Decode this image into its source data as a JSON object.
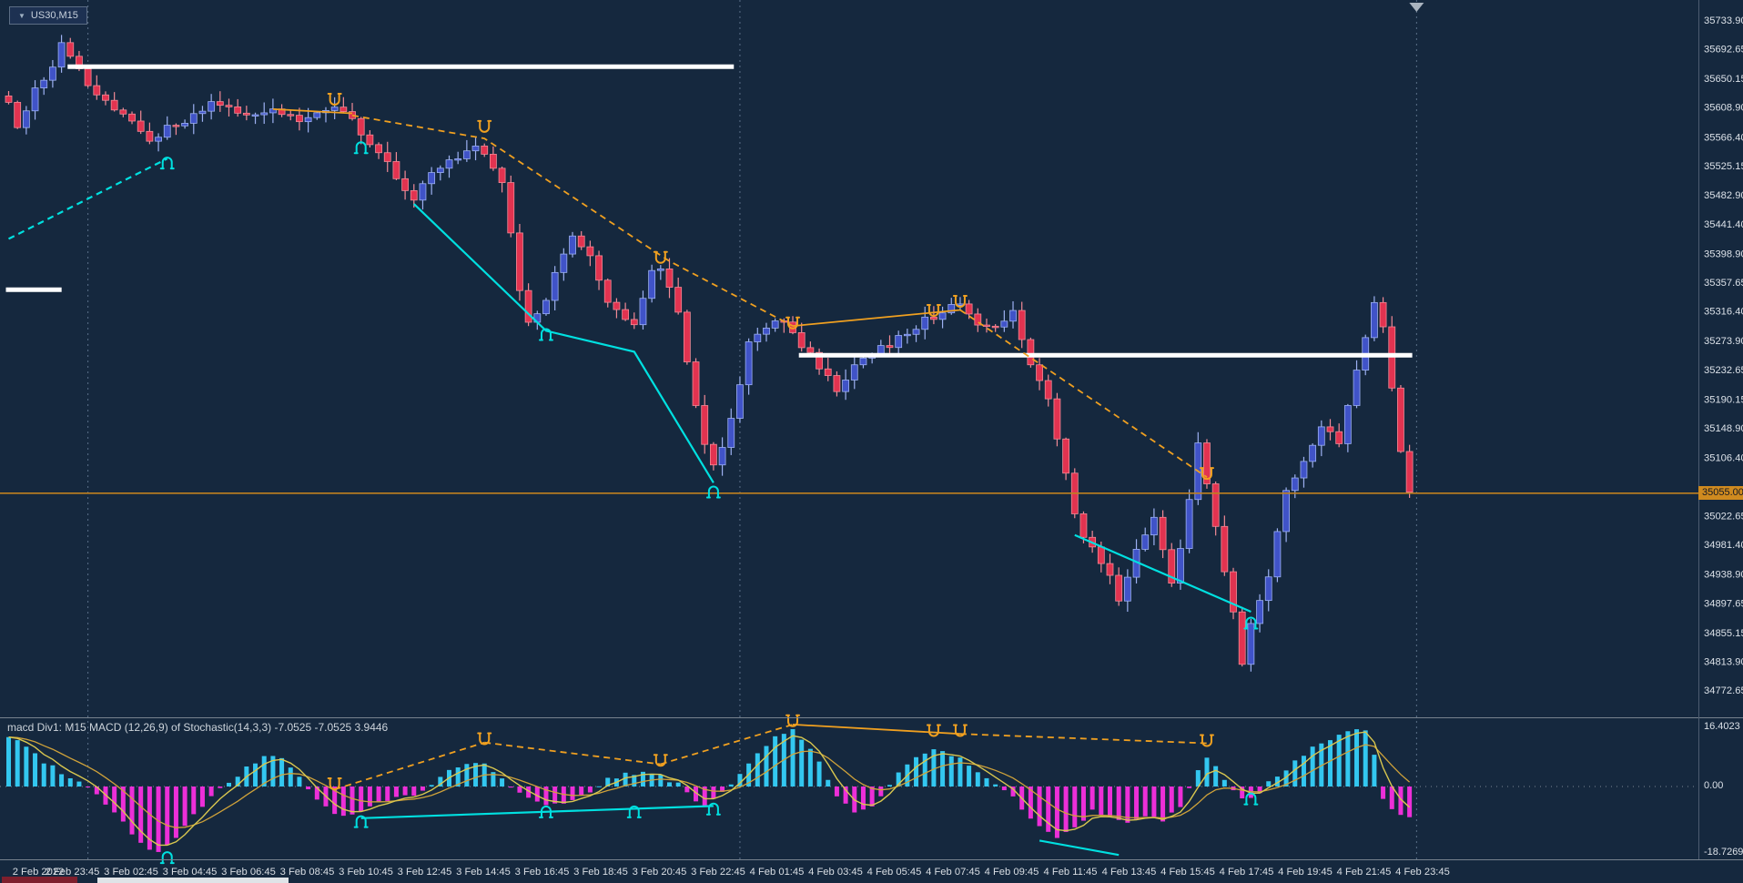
{
  "window": {
    "symbol_box": {
      "label": "US30,M15",
      "dropdown_icon": "▼"
    }
  },
  "chart_data": {
    "type": "candlestick",
    "title": "US30,M15",
    "timeframe": "M15",
    "colors": {
      "background": "#15283e",
      "bull_body": "#4053c8",
      "bull_wick": "#9db1f2",
      "bear_body": "#e23350",
      "bear_wick": "#f28a96",
      "macd_positive": "#33c7f0",
      "macd_negative": "#ec2fd8",
      "macd_signal_line": "#d9c74f",
      "macd_slow_line": "#cfa23a",
      "objects_orange": "#f0a020",
      "objects_cyan": "#00e0e0",
      "level_white": "#ffffff",
      "price_line": "#c08020",
      "price_badge_bg": "#cf8a1f"
    },
    "price_axis": {
      "ticks": [
        "35733.90",
        "35692.65",
        "35650.15",
        "35608.90",
        "35566.40",
        "35525.15",
        "35482.90",
        "35441.40",
        "35398.90",
        "35357.65",
        "35316.40",
        "35273.90",
        "35232.65",
        "35190.15",
        "35148.90",
        "35106.40",
        "35022.65",
        "34981.40",
        "34938.90",
        "34897.65",
        "34855.15",
        "34813.90",
        "34772.65"
      ],
      "current_price": "35055.00"
    },
    "time_axis": {
      "labels": [
        "2 Feb 2022",
        "2 Feb 23:45",
        "3 Feb 02:45",
        "3 Feb 04:45",
        "3 Feb 06:45",
        "3 Feb 08:45",
        "3 Feb 10:45",
        "3 Feb 12:45",
        "3 Feb 14:45",
        "3 Feb 16:45",
        "3 Feb 18:45",
        "3 Feb 20:45",
        "3 Feb 22:45",
        "4 Feb 01:45",
        "4 Feb 03:45",
        "4 Feb 05:45",
        "4 Feb 07:45",
        "4 Feb 09:45",
        "4 Feb 11:45",
        "4 Feb 13:45",
        "4 Feb 15:45",
        "4 Feb 17:45",
        "4 Feb 19:45",
        "4 Feb 21:45",
        "4 Feb 23:45"
      ]
    },
    "candles": {
      "count": 160,
      "wiggle": 6,
      "close_anchors": [
        [
          0,
          35615
        ],
        [
          1,
          35585
        ],
        [
          3,
          35632
        ],
        [
          5,
          35668
        ],
        [
          6,
          35706
        ],
        [
          7,
          35680
        ],
        [
          9,
          35642
        ],
        [
          11,
          35616
        ],
        [
          14,
          35590
        ],
        [
          16,
          35564
        ],
        [
          20,
          35590
        ],
        [
          23,
          35612
        ],
        [
          27,
          35600
        ],
        [
          30,
          35608
        ],
        [
          33,
          35592
        ],
        [
          35,
          35600
        ],
        [
          37,
          35608
        ],
        [
          39,
          35588
        ],
        [
          42,
          35545
        ],
        [
          44,
          35505
        ],
        [
          46,
          35480
        ],
        [
          48,
          35512
        ],
        [
          50,
          35530
        ],
        [
          53,
          35550
        ],
        [
          54,
          35540
        ],
        [
          56,
          35498
        ],
        [
          58,
          35350
        ],
        [
          59,
          35295
        ],
        [
          61,
          35330
        ],
        [
          63,
          35402
        ],
        [
          64,
          35425
        ],
        [
          66,
          35390
        ],
        [
          68,
          35325
        ],
        [
          70,
          35310
        ],
        [
          71,
          35300
        ],
        [
          73,
          35378
        ],
        [
          74,
          35382
        ],
        [
          76,
          35310
        ],
        [
          77,
          35245
        ],
        [
          79,
          35120
        ],
        [
          80,
          35090
        ],
        [
          82,
          35162
        ],
        [
          84,
          35270
        ],
        [
          86,
          35295
        ],
        [
          88,
          35300
        ],
        [
          90,
          35268
        ],
        [
          92,
          35235
        ],
        [
          94,
          35205
        ],
        [
          96,
          35240
        ],
        [
          98,
          35258
        ],
        [
          100,
          35270
        ],
        [
          102,
          35284
        ],
        [
          104,
          35304
        ],
        [
          106,
          35314
        ],
        [
          108,
          35326
        ],
        [
          110,
          35300
        ],
        [
          112,
          35294
        ],
        [
          114,
          35314
        ],
        [
          116,
          35245
        ],
        [
          118,
          35190
        ],
        [
          120,
          35080
        ],
        [
          121,
          35020
        ],
        [
          123,
          34975
        ],
        [
          125,
          34935
        ],
        [
          126,
          34905
        ],
        [
          128,
          34975
        ],
        [
          130,
          35015
        ],
        [
          132,
          34930
        ],
        [
          133,
          34975
        ],
        [
          135,
          35125
        ],
        [
          136,
          35070
        ],
        [
          138,
          34945
        ],
        [
          140,
          34815
        ],
        [
          141,
          34870
        ],
        [
          143,
          34940
        ],
        [
          145,
          35055
        ],
        [
          147,
          35095
        ],
        [
          149,
          35155
        ],
        [
          151,
          35125
        ],
        [
          153,
          35230
        ],
        [
          155,
          35332
        ],
        [
          156,
          35290
        ],
        [
          157,
          35210
        ],
        [
          158,
          35120
        ],
        [
          159,
          35058
        ]
      ]
    },
    "levels": [
      {
        "type": "hline",
        "price": 35055.0
      },
      {
        "type": "segment",
        "price": 35667,
        "from": 7,
        "to": 82
      },
      {
        "type": "segment",
        "price": 35347,
        "from": 0,
        "to": 5.7
      },
      {
        "type": "segment",
        "price": 35253,
        "from": 90,
        "to": 159
      }
    ],
    "trendlines": [
      {
        "color": "cyan",
        "style": "dashed",
        "points": [
          [
            0,
            35420
          ],
          [
            18,
            35535
          ]
        ]
      },
      {
        "color": "cyan",
        "style": "solid",
        "points": [
          [
            46,
            35470
          ],
          [
            61,
            35288
          ],
          [
            71,
            35258
          ],
          [
            80,
            35070
          ]
        ]
      },
      {
        "color": "cyan",
        "style": "solid",
        "points": [
          [
            121,
            34995
          ],
          [
            141,
            34885
          ]
        ]
      },
      {
        "color": "orange",
        "style": "solid",
        "points": [
          [
            30,
            35606
          ],
          [
            39,
            35600
          ]
        ]
      },
      {
        "color": "orange",
        "style": "dashed",
        "points": [
          [
            39,
            35597
          ],
          [
            54,
            35564
          ],
          [
            75,
            35388
          ],
          [
            89,
            35295
          ]
        ]
      },
      {
        "color": "orange",
        "style": "solid",
        "points": [
          [
            89,
            35295
          ],
          [
            108,
            35318
          ]
        ]
      },
      {
        "color": "orange",
        "style": "dashed",
        "points": [
          [
            108,
            35318
          ],
          [
            136,
            35078
          ]
        ]
      }
    ],
    "markers": [
      {
        "shape": "U",
        "color": "orange",
        "pane": "price",
        "at": [
          [
            37,
            35619
          ],
          [
            54,
            35580
          ],
          [
            74,
            35392
          ],
          [
            89,
            35298
          ],
          [
            105,
            35316
          ],
          [
            108,
            35329
          ],
          [
            136,
            35082
          ]
        ]
      },
      {
        "shape": "N",
        "color": "cyan",
        "pane": "price",
        "at": [
          [
            18,
            35530
          ],
          [
            40,
            35552
          ],
          [
            61,
            35284
          ],
          [
            80,
            35058
          ],
          [
            141,
            34870
          ]
        ]
      },
      {
        "shape": "U",
        "color": "orange",
        "pane": "macd",
        "at": [
          [
            37,
            0.5
          ],
          [
            54,
            13
          ],
          [
            74,
            7
          ],
          [
            89,
            18
          ],
          [
            105,
            15.3
          ],
          [
            108,
            15.3
          ],
          [
            136,
            12.5
          ]
        ]
      },
      {
        "shape": "N",
        "color": "cyan",
        "pane": "macd",
        "at": [
          [
            18,
            -19.5
          ],
          [
            40,
            -9.5
          ],
          [
            61,
            -6.8
          ],
          [
            71,
            -6.8
          ],
          [
            80,
            -6
          ],
          [
            141,
            -3.2
          ]
        ]
      }
    ],
    "separators": {
      "day_idx": [
        9,
        83
      ],
      "shift_idx": 159.8
    },
    "macd": {
      "label": "macd Div1: M15 MACD (12,26,9) of Stochastic(14,3,3) -7.0525 -7.0525 3.9446",
      "scale": {
        "max": "16.4023",
        "zero": "0.00",
        "min": "-18.7269"
      },
      "hist_anchors": [
        [
          0,
          14
        ],
        [
          2,
          11
        ],
        [
          4,
          7
        ],
        [
          6,
          4
        ],
        [
          8,
          1.5
        ],
        [
          10,
          -2
        ],
        [
          12,
          -7
        ],
        [
          14,
          -13
        ],
        [
          16,
          -17.5
        ],
        [
          17,
          -18.5
        ],
        [
          19,
          -14
        ],
        [
          21,
          -8
        ],
        [
          23,
          -3
        ],
        [
          25,
          1
        ],
        [
          27,
          5
        ],
        [
          29,
          8.5
        ],
        [
          31,
          8
        ],
        [
          33,
          3
        ],
        [
          34,
          -1
        ],
        [
          36,
          -6
        ],
        [
          38,
          -8.5
        ],
        [
          40,
          -7
        ],
        [
          42,
          -4.5
        ],
        [
          44,
          -3
        ],
        [
          46,
          -2.5
        ],
        [
          48,
          1
        ],
        [
          50,
          4
        ],
        [
          52,
          6.5
        ],
        [
          54,
          6
        ],
        [
          56,
          2
        ],
        [
          58,
          -2
        ],
        [
          60,
          -4.5
        ],
        [
          62,
          -5
        ],
        [
          64,
          -3.5
        ],
        [
          66,
          -1.5
        ],
        [
          68,
          2
        ],
        [
          70,
          3.5
        ],
        [
          72,
          4
        ],
        [
          74,
          3
        ],
        [
          76,
          0.5
        ],
        [
          77,
          -2
        ],
        [
          79,
          -5.5
        ],
        [
          81,
          -2
        ],
        [
          83,
          4
        ],
        [
          85,
          9
        ],
        [
          87,
          13.5
        ],
        [
          89,
          16
        ],
        [
          91,
          11
        ],
        [
          93,
          2
        ],
        [
          94,
          -3
        ],
        [
          96,
          -7.5
        ],
        [
          98,
          -6
        ],
        [
          100,
          1
        ],
        [
          102,
          6
        ],
        [
          104,
          9.5
        ],
        [
          106,
          10
        ],
        [
          108,
          8
        ],
        [
          110,
          4
        ],
        [
          112,
          1
        ],
        [
          114,
          -3
        ],
        [
          116,
          -9
        ],
        [
          118,
          -13
        ],
        [
          119,
          -14.5
        ],
        [
          121,
          -11
        ],
        [
          123,
          -7
        ],
        [
          125,
          -8.5
        ],
        [
          127,
          -10.5
        ],
        [
          129,
          -8
        ],
        [
          131,
          -9.5
        ],
        [
          133,
          -6
        ],
        [
          134,
          -1
        ],
        [
          135,
          4
        ],
        [
          136,
          8
        ],
        [
          137,
          6
        ],
        [
          138,
          2
        ],
        [
          139,
          -1.5
        ],
        [
          140,
          -3.5
        ],
        [
          142,
          -2
        ],
        [
          143,
          1
        ],
        [
          145,
          5
        ],
        [
          147,
          9
        ],
        [
          149,
          12
        ],
        [
          151,
          14
        ],
        [
          153,
          15.5
        ],
        [
          154,
          15
        ],
        [
          155,
          9
        ],
        [
          156,
          -3
        ],
        [
          157,
          -6
        ],
        [
          158,
          -7.5
        ],
        [
          159,
          -8
        ]
      ],
      "trendlines": [
        {
          "color": "cyan",
          "style": "solid",
          "points": [
            [
              40,
              -8.8
            ],
            [
              80,
              -5.4
            ]
          ]
        },
        {
          "color": "cyan",
          "style": "solid",
          "points": [
            [
              117,
              -15
            ],
            [
              126,
              -19
            ]
          ]
        },
        {
          "color": "orange",
          "style": "dashed",
          "points": [
            [
              37,
              -0.8
            ],
            [
              54,
              12.2
            ]
          ]
        },
        {
          "color": "orange",
          "style": "dashed",
          "points": [
            [
              54,
              12.2
            ],
            [
              74,
              6.2
            ]
          ]
        },
        {
          "color": "orange",
          "style": "dashed",
          "points": [
            [
              74,
              6.2
            ],
            [
              89,
              17.2
            ]
          ]
        },
        {
          "color": "orange",
          "style": "solid",
          "points": [
            [
              89,
              17.2
            ],
            [
              108,
              14.6
            ]
          ]
        },
        {
          "color": "orange",
          "style": "dashed",
          "points": [
            [
              108,
              14.6
            ],
            [
              136,
              12
            ]
          ]
        }
      ]
    }
  }
}
